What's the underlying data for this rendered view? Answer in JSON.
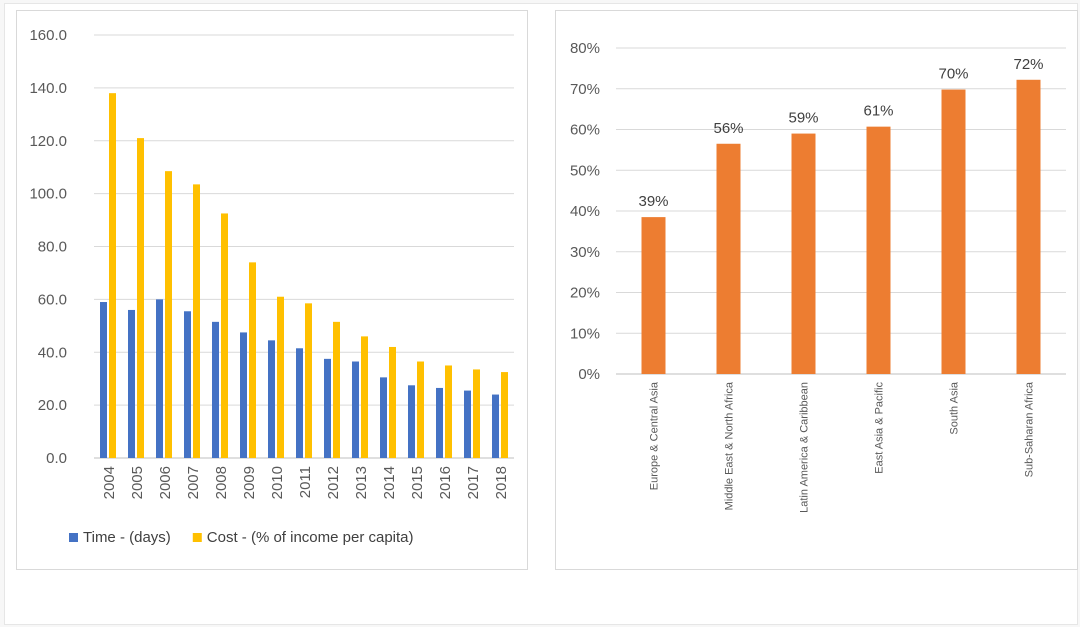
{
  "chart_data": [
    {
      "type": "bar",
      "title": "",
      "xlabel": "",
      "ylabel": "",
      "ylim": [
        0,
        160
      ],
      "yticks": [
        "0.0",
        "20.0",
        "40.0",
        "60.0",
        "80.0",
        "100.0",
        "120.0",
        "140.0",
        "160.0"
      ],
      "grid": true,
      "legend_position": "bottom",
      "categories": [
        "2004",
        "2005",
        "2006",
        "2007",
        "2008",
        "2009",
        "2010",
        "2011",
        "2012",
        "2013",
        "2014",
        "2015",
        "2016",
        "2017",
        "2018"
      ],
      "series": [
        {
          "name": "Time - (days)",
          "color": "#4472c4",
          "values": [
            59,
            56,
            60,
            55.5,
            51.5,
            47.5,
            44.5,
            41.5,
            37.5,
            36.5,
            30.5,
            27.5,
            26.5,
            25.5,
            24
          ]
        },
        {
          "name": "Cost - (% of income per capita)",
          "color": "#ffc000",
          "values": [
            138,
            121,
            108.5,
            103.5,
            92.5,
            74,
            61,
            58.5,
            51.5,
            46,
            42,
            36.5,
            35,
            33.5,
            32.5
          ]
        }
      ]
    },
    {
      "type": "bar",
      "title": "",
      "xlabel": "",
      "ylabel": "",
      "ylim": [
        0,
        0.8
      ],
      "yticks": [
        "0%",
        "10%",
        "20%",
        "30%",
        "40%",
        "50%",
        "60%",
        "70%",
        "80%"
      ],
      "grid": true,
      "categories": [
        "Europe & Central Asia",
        "Middle East & North Africa",
        "Latin America & Caribbean",
        "East Asia & Pacific",
        "South Asia",
        "Sub-Saharan Africa"
      ],
      "series": [
        {
          "name": "",
          "color": "#ed7d31",
          "values": [
            0.385,
            0.565,
            0.59,
            0.607,
            0.698,
            0.722
          ],
          "labels": [
            "39%",
            "56%",
            "59%",
            "61%",
            "70%",
            "72%"
          ]
        }
      ]
    }
  ]
}
